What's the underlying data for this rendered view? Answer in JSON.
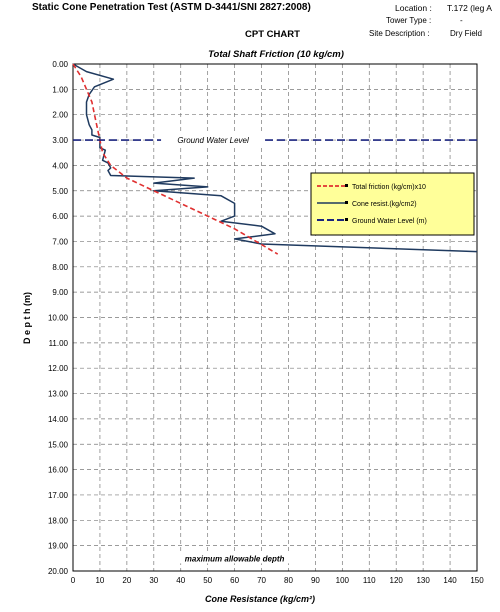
{
  "header": {
    "title": "Static Cone Penetration Test (ASTM D-3441/SNI 2827:2008)",
    "location_label": "Location :",
    "location_value": "T.172 (leg A",
    "tower_type_label": "Tower Type :",
    "tower_type_value": "-",
    "site_label": "Site Description :",
    "site_value": "Dry Field",
    "chart_heading": "CPT CHART"
  },
  "colors": {
    "cone": "#1f3a5f",
    "friction": "#e03030",
    "water": "#1a237e",
    "legend_bg": "#ffff99",
    "grid": "#7a7a7a"
  },
  "chart_data": {
    "type": "line",
    "title": "Total Shaft Friction (10 kg/cm)",
    "xlabel": "Cone Resistance (kg/cm²)",
    "ylabel": "D e p t h  (m)",
    "xlim": [
      0,
      150
    ],
    "ylim": [
      0,
      20
    ],
    "y_inverted": true,
    "x_ticks": [
      0,
      10,
      20,
      30,
      40,
      50,
      60,
      70,
      80,
      90,
      100,
      110,
      120,
      130,
      140,
      150
    ],
    "x_tick_labels": [
      "0",
      "10",
      "20",
      "30",
      "40",
      "50",
      "60",
      "70",
      "80",
      "90",
      "100",
      "110",
      "120",
      "130",
      "140",
      "150"
    ],
    "y_ticks": [
      0,
      1,
      2,
      3,
      4,
      5,
      6,
      7,
      8,
      9,
      10,
      11,
      12,
      13,
      14,
      15,
      16,
      17,
      18,
      19,
      20
    ],
    "y_tick_labels": [
      "0.00",
      "1.00",
      "2.00",
      "3.00",
      "4.00",
      "5.00",
      "6.00",
      "7.00",
      "8.00",
      "9.00",
      "10.00",
      "11.00",
      "12.00",
      "13.00",
      "14.00",
      "15.00",
      "16.00",
      "17.00",
      "18.00",
      "19.00",
      "20.00"
    ],
    "grid": true,
    "legend_position": "right",
    "series": [
      {
        "name": "Cone resist.(kg/cm2)",
        "style": "solid",
        "x": [
          0,
          5,
          15,
          8,
          6,
          5,
          5,
          6,
          7,
          7,
          10,
          10,
          12,
          11,
          13,
          14,
          13,
          14,
          45,
          30,
          50,
          30,
          55,
          60,
          60,
          55,
          70,
          75,
          60,
          70,
          150
        ],
        "y": [
          0,
          0.3,
          0.6,
          0.9,
          1.2,
          1.5,
          2.0,
          2.4,
          2.6,
          2.8,
          2.9,
          3.3,
          3.4,
          3.8,
          3.9,
          4.1,
          4.2,
          4.4,
          4.5,
          4.7,
          4.85,
          5.0,
          5.2,
          5.5,
          6.0,
          6.2,
          6.4,
          6.7,
          6.9,
          7.1,
          7.4
        ]
      },
      {
        "name": "Total friction (kg/cm)x10",
        "style": "dashed",
        "x": [
          0,
          3,
          5,
          7,
          8,
          9,
          10,
          11,
          14,
          20,
          30,
          40,
          50,
          60,
          68,
          76
        ],
        "y": [
          0,
          0.5,
          1.0,
          1.5,
          2.0,
          2.5,
          3.0,
          3.5,
          4.0,
          4.5,
          5.0,
          5.5,
          6.0,
          6.5,
          7.0,
          7.5
        ]
      },
      {
        "name": "Ground Water Level (m)",
        "style": "dashed",
        "x": [
          0,
          150
        ],
        "y": [
          3,
          3
        ]
      }
    ],
    "annotations": [
      {
        "text": "Ground Water Level",
        "x": 52,
        "y": 3
      },
      {
        "text": "maximum allowable depth",
        "x": 60,
        "y": 19.5
      }
    ]
  }
}
